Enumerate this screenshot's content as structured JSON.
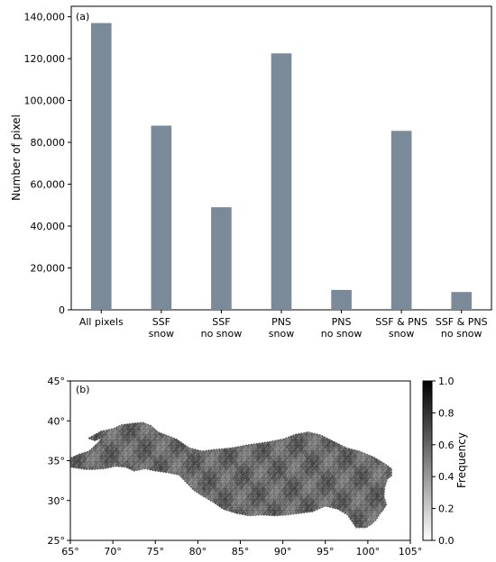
{
  "chart_data": [
    {
      "panel_label": "(a)",
      "type": "bar",
      "categories": [
        [
          "All pixels"
        ],
        [
          "SSF",
          "snow"
        ],
        [
          "SSF",
          "no snow"
        ],
        [
          "PNS",
          "snow"
        ],
        [
          "PNS",
          "no snow"
        ],
        [
          "SSF & PNS",
          "snow"
        ],
        [
          "SSF & PNS",
          "no snow"
        ]
      ],
      "values": [
        137000,
        88000,
        49000,
        122500,
        9500,
        85500,
        8500
      ],
      "ylabel": "Number of pixel",
      "ylim": [
        0,
        145000
      ],
      "yticks": [
        0,
        20000,
        40000,
        60000,
        80000,
        100000,
        120000,
        140000
      ],
      "ytick_labels": [
        "0",
        "20,000",
        "40,000",
        "60,000",
        "80,000",
        "100,000",
        "120,000",
        "140,000"
      ],
      "bar_color": "#7b8a99",
      "grid": false
    },
    {
      "panel_label": "(b)",
      "type": "heatmap",
      "xlim": [
        65,
        105
      ],
      "ylim": [
        25,
        45
      ],
      "xticks": [
        65,
        70,
        75,
        80,
        85,
        90,
        95,
        100,
        105
      ],
      "xtick_labels": [
        "65°",
        "70°",
        "75°",
        "80°",
        "85°",
        "90°",
        "95°",
        "100°",
        "105°"
      ],
      "yticks": [
        25,
        30,
        35,
        40,
        45
      ],
      "ytick_labels": [
        "25°",
        "30°",
        "35°",
        "40°",
        "45°"
      ],
      "region_outline_lonlat": [
        [
          66.0,
          35.8
        ],
        [
          67.2,
          36.2
        ],
        [
          68.2,
          37.2
        ],
        [
          68.8,
          37.9
        ],
        [
          67.9,
          37.5
        ],
        [
          67.1,
          37.8
        ],
        [
          68.6,
          38.7
        ],
        [
          70.0,
          39.0
        ],
        [
          71.0,
          39.5
        ],
        [
          72.5,
          39.7
        ],
        [
          73.5,
          39.8
        ],
        [
          74.5,
          39.4
        ],
        [
          75.3,
          38.6
        ],
        [
          76.3,
          38.2
        ],
        [
          77.5,
          37.7
        ],
        [
          79.0,
          36.6
        ],
        [
          80.5,
          36.2
        ],
        [
          82.0,
          36.4
        ],
        [
          84.0,
          36.6
        ],
        [
          86.0,
          37.0
        ],
        [
          88.0,
          37.3
        ],
        [
          90.0,
          37.7
        ],
        [
          91.5,
          38.3
        ],
        [
          93.0,
          38.6
        ],
        [
          94.5,
          38.2
        ],
        [
          96.0,
          37.4
        ],
        [
          97.5,
          36.6
        ],
        [
          99.0,
          36.2
        ],
        [
          100.8,
          35.4
        ],
        [
          102.0,
          34.6
        ],
        [
          102.8,
          34.0
        ],
        [
          102.8,
          33.1
        ],
        [
          102.3,
          32.7
        ],
        [
          102.0,
          31.7
        ],
        [
          101.9,
          30.5
        ],
        [
          102.2,
          29.5
        ],
        [
          101.8,
          28.8
        ],
        [
          101.4,
          28.3
        ],
        [
          101.0,
          27.6
        ],
        [
          100.4,
          27.0
        ],
        [
          99.8,
          26.6
        ],
        [
          98.6,
          26.6
        ],
        [
          97.6,
          28.2
        ],
        [
          96.5,
          28.9
        ],
        [
          95.0,
          29.3
        ],
        [
          93.5,
          28.6
        ],
        [
          92.0,
          28.4
        ],
        [
          90.5,
          28.2
        ],
        [
          89.0,
          28.1
        ],
        [
          87.5,
          28.2
        ],
        [
          86.0,
          28.1
        ],
        [
          84.5,
          28.4
        ],
        [
          83.0,
          28.9
        ],
        [
          81.8,
          29.8
        ],
        [
          80.5,
          30.6
        ],
        [
          79.5,
          31.3
        ],
        [
          78.7,
          32.2
        ],
        [
          77.8,
          33.2
        ],
        [
          76.5,
          33.5
        ],
        [
          75.0,
          33.7
        ],
        [
          73.8,
          34.0
        ],
        [
          72.5,
          33.7
        ],
        [
          71.5,
          34.2
        ],
        [
          70.3,
          34.3
        ],
        [
          69.0,
          34.0
        ],
        [
          67.8,
          33.9
        ],
        [
          66.8,
          33.9
        ],
        [
          65.0,
          34.2
        ],
        [
          65.0,
          35.3
        ]
      ],
      "colorbar": {
        "label": "Frequency",
        "range": [
          0.0,
          1.0
        ],
        "ticks": [
          0.0,
          0.2,
          0.4,
          0.6,
          0.8,
          1.0
        ],
        "tick_labels": [
          "0.0",
          "0.2",
          "0.4",
          "0.6",
          "0.8",
          "1.0"
        ],
        "colors": [
          "#ffffff",
          "#000000"
        ],
        "map_value_range": [
          0.45,
          0.85
        ]
      }
    }
  ]
}
